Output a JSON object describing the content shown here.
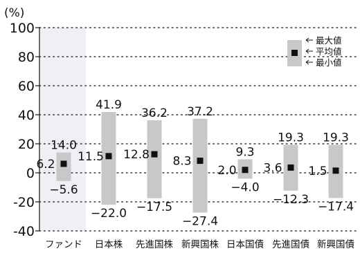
{
  "chart_data": {
    "type": "range",
    "unit": "(%)",
    "ylim": [
      -40,
      100
    ],
    "yticks": [
      100,
      80,
      60,
      40,
      20,
      0,
      -20,
      -40
    ],
    "grid": "dotted horizontal lines",
    "highlight_category": "ファンド",
    "legend": {
      "placement": "top-right",
      "items": [
        "最大値",
        "平均値",
        "最小値"
      ]
    },
    "categories": [
      "ファンド",
      "日本株",
      "先進国株",
      "新興国株",
      "日本国債",
      "先進国債",
      "新興国債"
    ],
    "series": [
      {
        "name": "最大値",
        "values": [
          14.0,
          41.9,
          36.2,
          37.2,
          9.3,
          19.3,
          19.3
        ]
      },
      {
        "name": "平均値",
        "values": [
          6.2,
          11.5,
          12.8,
          8.3,
          2.0,
          3.6,
          1.5
        ]
      },
      {
        "name": "最小値",
        "values": [
          -5.6,
          -22.0,
          -17.5,
          -27.4,
          -4.0,
          -12.3,
          -17.4
        ]
      }
    ],
    "max_labels": [
      "14.0",
      "41.9",
      "36.2",
      "37.2",
      "9.3",
      "19.3",
      "19.3"
    ],
    "avg_labels": [
      "6.2",
      "11.5",
      "12.8",
      "8.3",
      "2.0",
      "3.6",
      "1.5"
    ],
    "min_labels": [
      "−5.6",
      "−22.0",
      "−17.5",
      "−27.4",
      "−4.0",
      "−12.3",
      "−17.4"
    ],
    "colors": {
      "bar": "#c8c8c8",
      "highlight": "#eef0f5",
      "marker": "#111111",
      "grid": "#333333"
    }
  }
}
